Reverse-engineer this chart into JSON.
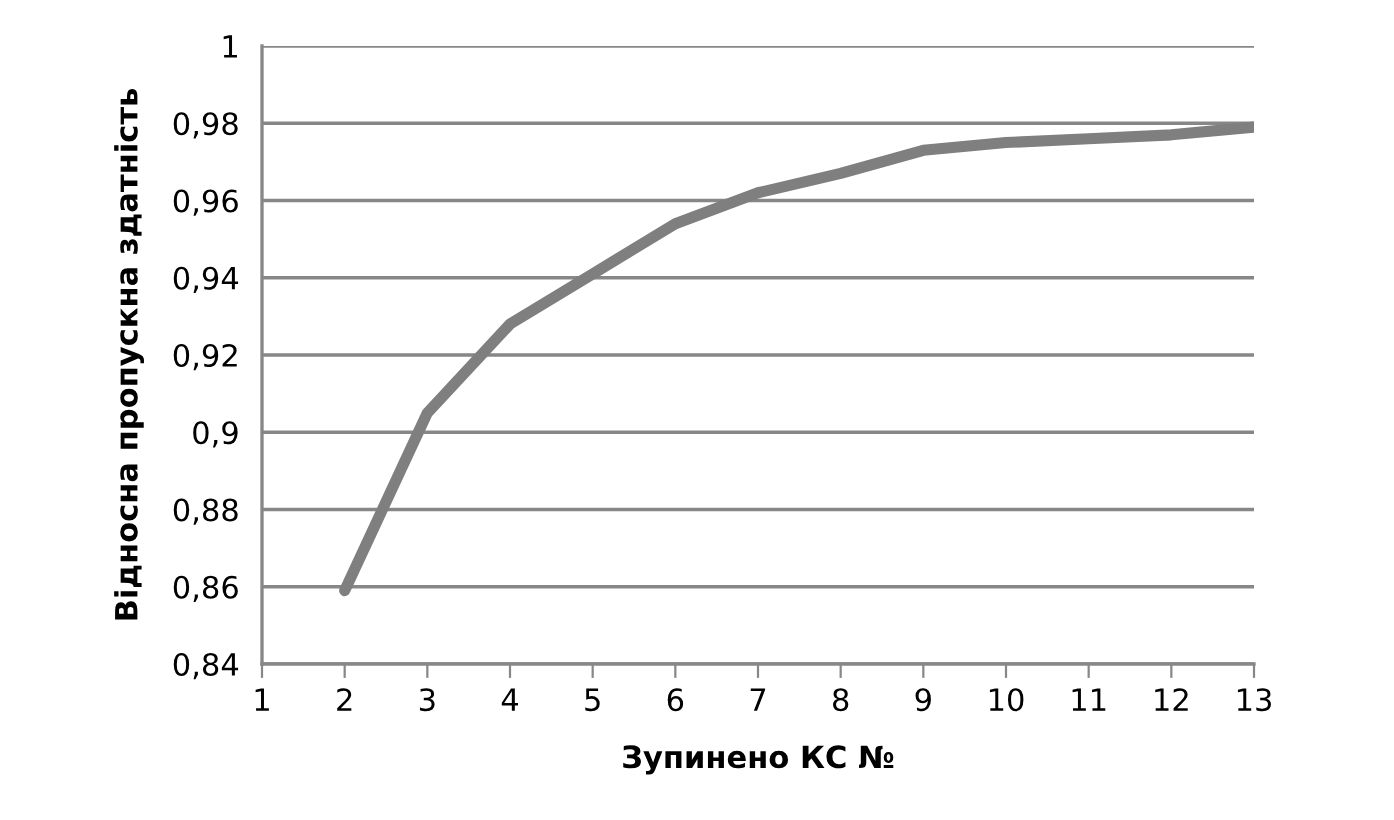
{
  "chart_data": {
    "type": "line",
    "xlabel": "Зупинено КС №",
    "ylabel": "Відносна пропускна здатність",
    "x": [
      2,
      3,
      4,
      5,
      6,
      7,
      8,
      9,
      10,
      11,
      12,
      13
    ],
    "series": [
      {
        "color": "#7f7f7f",
        "values": [
          0.859,
          0.905,
          0.928,
          0.941,
          0.954,
          0.962,
          0.967,
          0.973,
          0.975,
          0.976,
          0.977,
          0.979
        ]
      }
    ],
    "xlim": [
      1,
      13
    ],
    "xticks": [
      1,
      2,
      3,
      4,
      5,
      6,
      7,
      8,
      9,
      10,
      11,
      12,
      13
    ],
    "ylim": [
      0.84,
      1
    ],
    "yticks": [
      {
        "value": 0.84,
        "label": "0,84"
      },
      {
        "value": 0.86,
        "label": "0,86"
      },
      {
        "value": 0.88,
        "label": "0,88"
      },
      {
        "value": 0.9,
        "label": "0,9"
      },
      {
        "value": 0.92,
        "label": "0,92"
      },
      {
        "value": 0.94,
        "label": "0,94"
      },
      {
        "value": 0.96,
        "label": "0,96"
      },
      {
        "value": 0.98,
        "label": "0,98"
      },
      {
        "value": 1,
        "label": "1"
      }
    ],
    "grid": "y",
    "legend": false,
    "marker": "none",
    "line_style": "solid"
  }
}
